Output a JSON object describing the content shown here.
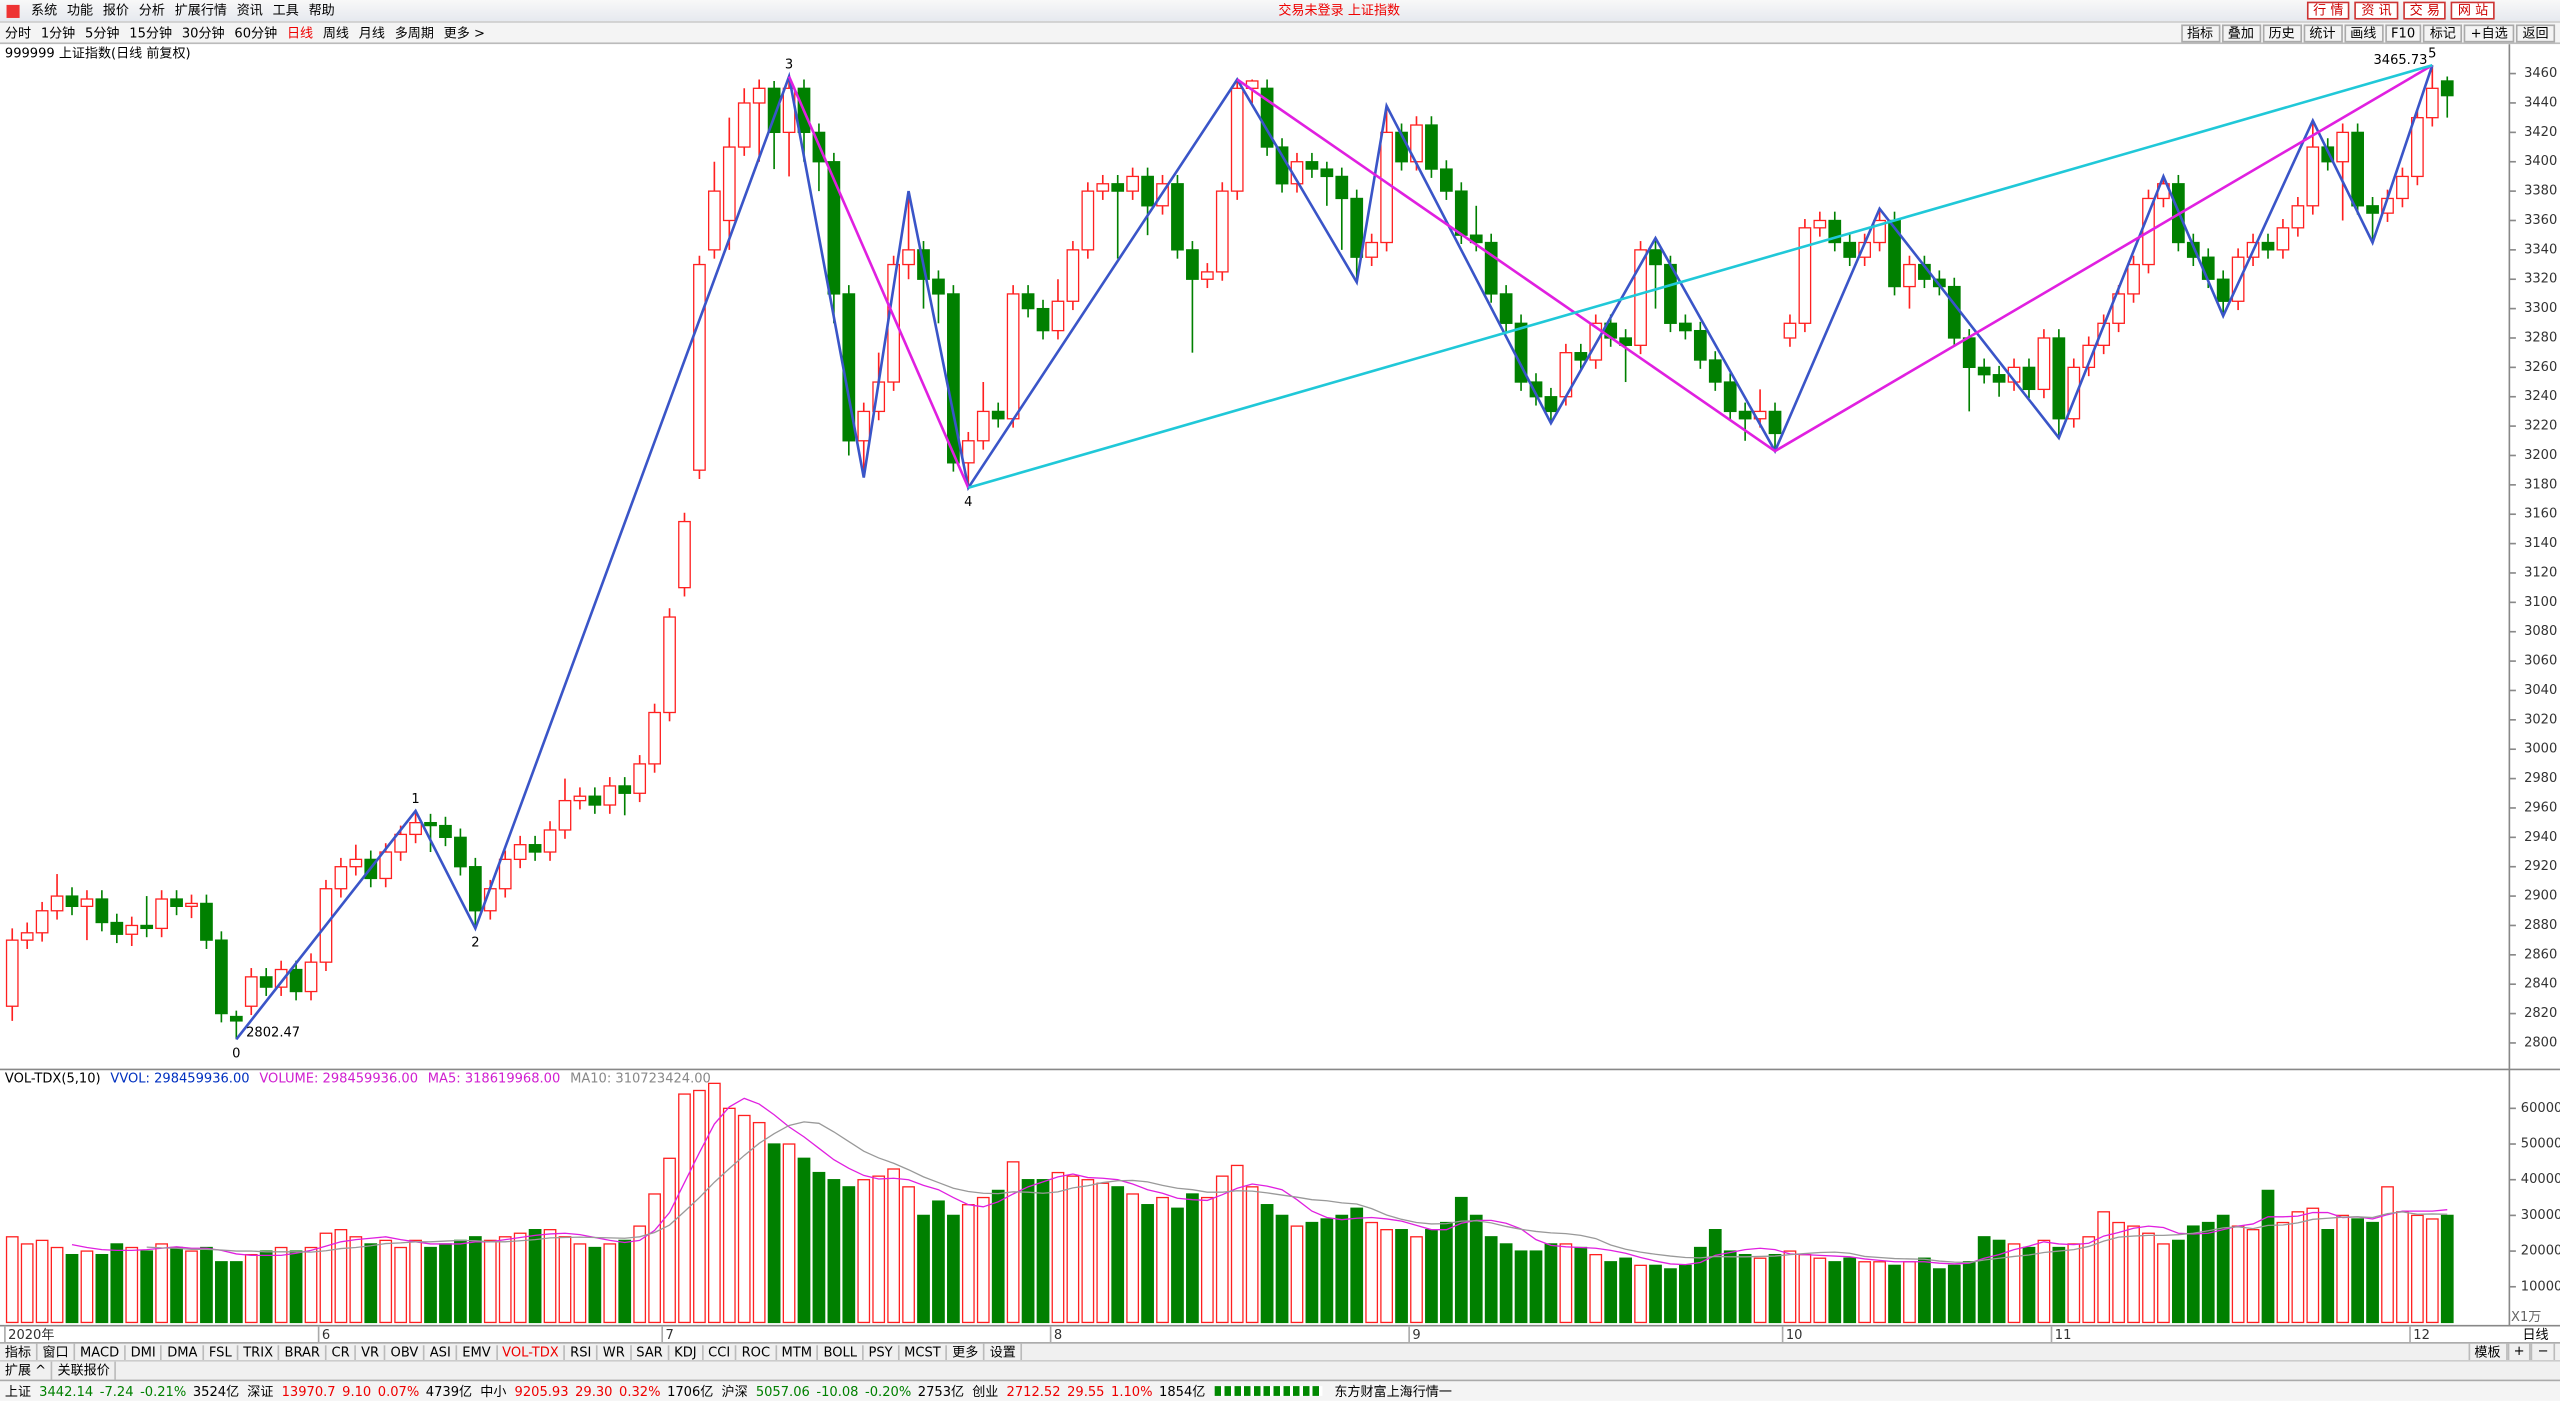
{
  "menu": {
    "items": [
      "系统",
      "功能",
      "报价",
      "分析",
      "扩展行情",
      "资讯",
      "工具",
      "帮助"
    ],
    "status": "交易未登录 上证指数",
    "buttons": [
      "行 情",
      "资 讯",
      "交 易",
      "网 站"
    ]
  },
  "periods": {
    "items": [
      "分时",
      "1分钟",
      "5分钟",
      "15分钟",
      "30分钟",
      "60分钟",
      "日线",
      "周线",
      "月线",
      "多周期",
      "更多 >"
    ],
    "active_index": 6
  },
  "tools": [
    "指标",
    "叠加",
    "历史",
    "统计",
    "画线",
    "F10",
    "标记",
    "+自选",
    "返回"
  ],
  "chart_data": {
    "type": "candlestick",
    "title": "999999 上证指数(日线 前复权)",
    "up_color": "#ff2020",
    "down_color": "#008000",
    "open": [
      2825,
      2870,
      2875,
      2890,
      2900,
      2893,
      2898,
      2882,
      2874,
      2880,
      2878,
      2898,
      2893,
      2895,
      2870,
      2818,
      2825,
      2845,
      2838,
      2850,
      2835,
      2855,
      2905,
      2920,
      2925,
      2912,
      2930,
      2942,
      2950,
      2948,
      2940,
      2920,
      2890,
      2905,
      2925,
      2935,
      2930,
      2945,
      2965,
      2968,
      2962,
      2975,
      2970,
      2990,
      3025,
      3110,
      3190,
      3340,
      3360,
      3410,
      3440,
      3450,
      3420,
      3450,
      3420,
      3400,
      3310,
      3210,
      3230,
      3250,
      3330,
      3340,
      3320,
      3310,
      3195,
      3210,
      3230,
      3225,
      3310,
      3300,
      3285,
      3305,
      3340,
      3380,
      3385,
      3380,
      3390,
      3370,
      3385,
      3340,
      3320,
      3325,
      3380,
      3450,
      3450,
      3410,
      3385,
      3400,
      3395,
      3390,
      3375,
      3335,
      3345,
      3420,
      3400,
      3425,
      3395,
      3380,
      3350,
      3345,
      3310,
      3290,
      3250,
      3240,
      3240,
      3270,
      3265,
      3290,
      3280,
      3275,
      3340,
      3330,
      3290,
      3285,
      3265,
      3250,
      3230,
      3225,
      3230,
      3280,
      3290,
      3355,
      3360,
      3345,
      3335,
      3345,
      3360,
      3315,
      3330,
      3320,
      3315,
      3280,
      3260,
      3255,
      3250,
      3260,
      3245,
      3280,
      3225,
      3260,
      3275,
      3290,
      3310,
      3330,
      3375,
      3385,
      3345,
      3335,
      3320,
      3305,
      3335,
      3345,
      3340,
      3355,
      3370,
      3410,
      3400,
      3420,
      3370,
      3365,
      3375,
      3390,
      3430,
      3455
    ],
    "high": [
      2878,
      2882,
      2896,
      2915,
      2906,
      2904,
      2904,
      2888,
      2886,
      2900,
      2904,
      2904,
      2901,
      2901,
      2876,
      2822,
      2851,
      2851,
      2856,
      2856,
      2861,
      2911,
      2926,
      2935,
      2931,
      2936,
      2948,
      2958,
      2956,
      2954,
      2946,
      2926,
      2911,
      2931,
      2941,
      2941,
      2951,
      2980,
      2974,
      2974,
      2981,
      2981,
      2996,
      3031,
      3096,
      3161,
      3336,
      3400,
      3430,
      3450,
      3456,
      3455,
      3458,
      3456,
      3426,
      3406,
      3316,
      3236,
      3270,
      3336,
      3380,
      3346,
      3326,
      3316,
      3216,
      3250,
      3236,
      3316,
      3316,
      3306,
      3320,
      3346,
      3386,
      3391,
      3391,
      3396,
      3396,
      3391,
      3391,
      3346,
      3331,
      3386,
      3456,
      3456,
      3456,
      3416,
      3406,
      3406,
      3400,
      3396,
      3381,
      3351,
      3438,
      3426,
      3431,
      3431,
      3401,
      3386,
      3370,
      3351,
      3316,
      3296,
      3256,
      3246,
      3276,
      3276,
      3296,
      3296,
      3286,
      3346,
      3348,
      3336,
      3296,
      3291,
      3271,
      3256,
      3236,
      3245,
      3236,
      3296,
      3361,
      3366,
      3366,
      3351,
      3351,
      3368,
      3366,
      3336,
      3336,
      3326,
      3321,
      3286,
      3266,
      3261,
      3266,
      3266,
      3286,
      3286,
      3266,
      3281,
      3296,
      3316,
      3336,
      3381,
      3390,
      3391,
      3351,
      3341,
      3326,
      3341,
      3351,
      3351,
      3361,
      3376,
      3428,
      3416,
      3426,
      3426,
      3376,
      3381,
      3396,
      3436,
      3465.73,
      3458
    ],
    "low": [
      2815,
      2864,
      2869,
      2884,
      2887,
      2870,
      2876,
      2868,
      2866,
      2872,
      2872,
      2887,
      2885,
      2864,
      2814,
      2802.47,
      2819,
      2832,
      2832,
      2829,
      2829,
      2849,
      2899,
      2914,
      2906,
      2906,
      2924,
      2936,
      2930,
      2934,
      2914,
      2878,
      2884,
      2899,
      2919,
      2924,
      2924,
      2939,
      2959,
      2956,
      2956,
      2955,
      2964,
      2984,
      3019,
      3104,
      3184,
      3334,
      3340,
      3404,
      3400,
      3395,
      3390,
      3400,
      3380,
      3290,
      3200,
      3185,
      3224,
      3244,
      3320,
      3300,
      3290,
      3189,
      3178,
      3204,
      3219,
      3219,
      3294,
      3279,
      3279,
      3299,
      3334,
      3374,
      3334,
      3374,
      3350,
      3364,
      3334,
      3270,
      3314,
      3319,
      3374,
      3440,
      3404,
      3379,
      3379,
      3389,
      3370,
      3340,
      3318,
      3329,
      3339,
      3394,
      3394,
      3389,
      3374,
      3344,
      3339,
      3304,
      3284,
      3244,
      3234,
      3222,
      3234,
      3259,
      3259,
      3274,
      3250,
      3269,
      3300,
      3284,
      3279,
      3259,
      3244,
      3224,
      3210,
      3219,
      3203,
      3274,
      3284,
      3349,
      3339,
      3329,
      3329,
      3339,
      3309,
      3300,
      3314,
      3309,
      3274,
      3230,
      3249,
      3240,
      3244,
      3239,
      3239,
      3212,
      3219,
      3254,
      3269,
      3284,
      3304,
      3324,
      3369,
      3339,
      3329,
      3314,
      3295,
      3299,
      3329,
      3334,
      3334,
      3349,
      3364,
      3394,
      3360,
      3364,
      3345,
      3359,
      3369,
      3384,
      3424,
      3430
    ],
    "close": [
      2870,
      2875,
      2890,
      2900,
      2893,
      2898,
      2882,
      2874,
      2880,
      2878,
      2898,
      2893,
      2895,
      2870,
      2820,
      2815,
      2845,
      2838,
      2850,
      2835,
      2855,
      2905,
      2920,
      2925,
      2912,
      2930,
      2942,
      2950,
      2948,
      2940,
      2920,
      2890,
      2905,
      2925,
      2935,
      2930,
      2945,
      2965,
      2968,
      2962,
      2975,
      2970,
      2990,
      3025,
      3090,
      3155,
      3330,
      3380,
      3410,
      3440,
      3450,
      3420,
      3450,
      3420,
      3400,
      3310,
      3210,
      3230,
      3250,
      3330,
      3340,
      3320,
      3310,
      3195,
      3210,
      3230,
      3225,
      3310,
      3300,
      3285,
      3305,
      3340,
      3380,
      3385,
      3380,
      3390,
      3370,
      3385,
      3340,
      3320,
      3325,
      3380,
      3450,
      3455,
      3410,
      3385,
      3400,
      3395,
      3390,
      3375,
      3335,
      3345,
      3420,
      3400,
      3425,
      3395,
      3380,
      3350,
      3345,
      3310,
      3290,
      3250,
      3240,
      3230,
      3270,
      3265,
      3290,
      3280,
      3275,
      3340,
      3330,
      3290,
      3285,
      3265,
      3250,
      3230,
      3225,
      3230,
      3215,
      3290,
      3355,
      3360,
      3345,
      3335,
      3345,
      3360,
      3315,
      3330,
      3320,
      3315,
      3280,
      3260,
      3255,
      3250,
      3260,
      3245,
      3280,
      3225,
      3260,
      3275,
      3290,
      3310,
      3330,
      3375,
      3385,
      3345,
      3335,
      3320,
      3305,
      3335,
      3345,
      3340,
      3355,
      3370,
      3410,
      3400,
      3420,
      3370,
      3365,
      3375,
      3390,
      3430,
      3450,
      3445
    ],
    "ylim": [
      2782,
      3479
    ],
    "yticks": [
      2800,
      2820,
      2840,
      2860,
      2880,
      2900,
      2920,
      2940,
      2960,
      2980,
      3000,
      3020,
      3040,
      3060,
      3080,
      3100,
      3120,
      3140,
      3160,
      3180,
      3200,
      3220,
      3240,
      3260,
      3280,
      3300,
      3320,
      3340,
      3360,
      3380,
      3400,
      3420,
      3440,
      3460
    ],
    "x_labels": [
      {
        "index": 0,
        "label": "2020年"
      },
      {
        "index": 21,
        "label": "6"
      },
      {
        "index": 44,
        "label": "7"
      },
      {
        "index": 70,
        "label": "8"
      },
      {
        "index": 94,
        "label": "9"
      },
      {
        "index": 119,
        "label": "10"
      },
      {
        "index": 137,
        "label": "11"
      },
      {
        "index": 161,
        "label": "12"
      }
    ],
    "period_label": "日线",
    "waves": [
      {
        "label": 0,
        "index": 15,
        "price": 2802.47,
        "below": true,
        "show_price": true
      },
      {
        "label": 1,
        "index": 27,
        "price": 2958,
        "below": false,
        "show_price": false
      },
      {
        "label": 2,
        "index": 31,
        "price": 2878,
        "below": true,
        "show_price": false
      },
      {
        "label": 3,
        "index": 52,
        "price": 3458,
        "below": false,
        "show_price": false
      },
      {
        "label": 4,
        "index": 64,
        "price": 3178,
        "below": true,
        "show_price": false
      },
      {
        "label": 5,
        "index": 162,
        "price": 3465.73,
        "below": false,
        "show_price": true
      }
    ],
    "lines": [
      {
        "color": "#3a55c8",
        "points": [
          [
            15,
            2802.47
          ],
          [
            27,
            2958
          ],
          [
            31,
            2878
          ],
          [
            52,
            3458
          ],
          [
            57,
            3185
          ],
          [
            60,
            3380
          ],
          [
            64,
            3178
          ],
          [
            82,
            3456
          ],
          [
            90,
            3318
          ],
          [
            92,
            3438
          ],
          [
            103,
            3222
          ],
          [
            110,
            3348
          ],
          [
            118,
            3203
          ],
          [
            125,
            3368
          ],
          [
            137,
            3212
          ],
          [
            144,
            3390
          ],
          [
            148,
            3295
          ],
          [
            154,
            3428
          ],
          [
            158,
            3345
          ],
          [
            162,
            3465.73
          ]
        ]
      },
      {
        "color": "#e020e0",
        "points": [
          [
            52,
            3458
          ],
          [
            64,
            3178
          ]
        ]
      },
      {
        "color": "#e020e0",
        "points": [
          [
            82,
            3456
          ],
          [
            118,
            3203
          ],
          [
            162,
            3465.73
          ]
        ]
      },
      {
        "color": "#20c8d8",
        "points": [
          [
            64,
            3178
          ],
          [
            162,
            3465.73
          ]
        ]
      }
    ],
    "volume": {
      "header": [
        {
          "text": "VOL-TDX(5,10)",
          "color": "#000"
        },
        {
          "text": "VVOL: 298459936.00",
          "color": "#0030c0"
        },
        {
          "text": "VOLUME: 298459936.00",
          "color": "#d020d0"
        },
        {
          "text": "MA5: 318619968.00",
          "color": "#d020d0"
        },
        {
          "text": "MA10: 310723424.00",
          "color": "#888"
        }
      ],
      "ma": [
        {
          "period": 5,
          "color": "#e020e0"
        },
        {
          "period": 10,
          "color": "#999"
        }
      ],
      "values": [
        24000,
        22000,
        23000,
        21000,
        19000,
        20000,
        19000,
        22000,
        21000,
        20000,
        22000,
        21000,
        20000,
        21000,
        17000,
        17000,
        19000,
        20000,
        21000,
        20000,
        21000,
        25000,
        26000,
        24000,
        22000,
        23000,
        21000,
        23000,
        21000,
        22000,
        23000,
        24000,
        23000,
        24000,
        25000,
        26000,
        26000,
        24000,
        22000,
        21000,
        22000,
        23000,
        27000,
        36000,
        46000,
        64000,
        65000,
        67000,
        60000,
        58000,
        56000,
        50000,
        50000,
        46000,
        42000,
        40000,
        38000,
        40000,
        41000,
        43000,
        38000,
        30000,
        34000,
        30000,
        33000,
        35000,
        37000,
        45000,
        40000,
        40000,
        42000,
        41000,
        40000,
        39000,
        38000,
        36000,
        33000,
        35000,
        32000,
        36000,
        35000,
        41000,
        44000,
        38000,
        33000,
        30000,
        27000,
        28000,
        29000,
        30000,
        32000,
        28000,
        26000,
        26000,
        24000,
        26000,
        28000,
        35000,
        30000,
        24000,
        22000,
        20000,
        20000,
        22000,
        22000,
        21000,
        19000,
        17000,
        18000,
        16000,
        16000,
        15000,
        16000,
        21000,
        26000,
        20000,
        19000,
        18000,
        19000,
        20000,
        19000,
        18000,
        17000,
        18000,
        17000,
        17000,
        16000,
        17000,
        18000,
        15000,
        16000,
        17000,
        24000,
        23000,
        22000,
        21000,
        23000,
        21000,
        22000,
        24000,
        31000,
        28000,
        27000,
        25000,
        22000,
        23000,
        27000,
        28000,
        30000,
        27000,
        26000,
        37000,
        28000,
        31000,
        32000,
        26000,
        30000,
        29000,
        28000,
        38000,
        31000,
        30000,
        29000,
        30000
      ],
      "ylim": [
        0,
        70000
      ],
      "yticks": [
        10000,
        20000,
        30000,
        40000,
        50000,
        60000
      ],
      "unit": "X1万"
    }
  },
  "indicator_tabs": {
    "items": [
      "指标",
      "窗口",
      "MACD",
      "DMI",
      "DMA",
      "FSL",
      "TRIX",
      "BRAR",
      "CR",
      "VR",
      "OBV",
      "ASI",
      "EMV",
      "VOL-TDX",
      "RSI",
      "WR",
      "SAR",
      "KDJ",
      "CCI",
      "ROC",
      "MTM",
      "BOLL",
      "PSY",
      "MCST",
      "更多",
      "设置"
    ],
    "active_index": 13,
    "right": [
      "模板",
      "+",
      "−"
    ]
  },
  "ext_row": [
    "扩展 ^",
    "关联报价"
  ],
  "status": {
    "items": [
      {
        "name": "上证",
        "values": [
          "3442.14",
          "-7.24",
          "-0.21%",
          "3524亿"
        ]
      },
      {
        "name": "深证",
        "values": [
          "13970.7",
          "9.10",
          "0.07%",
          "4739亿"
        ]
      },
      {
        "name": "中小",
        "values": [
          "9205.93",
          "29.30",
          "0.32%",
          "1706亿"
        ]
      },
      {
        "name": "沪深",
        "values": [
          "5057.06",
          "-10.08",
          "-0.20%",
          "2753亿"
        ]
      },
      {
        "name": "创业",
        "values": [
          "2712.52",
          "29.55",
          "1.10%",
          "1854亿"
        ]
      }
    ],
    "ticker": "东方财富上海行情一"
  }
}
